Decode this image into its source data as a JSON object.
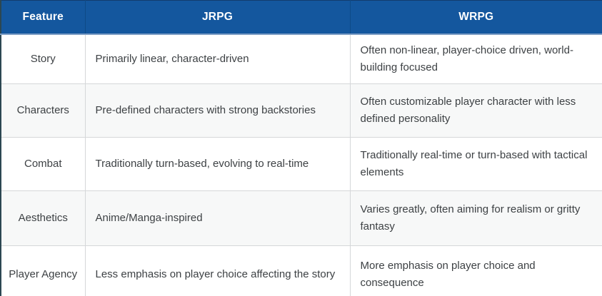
{
  "table": {
    "columns": [
      {
        "label": "Feature"
      },
      {
        "label": "JRPG"
      },
      {
        "label": "WRPG"
      }
    ],
    "rows": [
      {
        "feature": "Story",
        "jrpg": "Primarily linear, character-driven",
        "wrpg": "Often non-linear, player-choice driven, world-building focused"
      },
      {
        "feature": "Characters",
        "jrpg": "Pre-defined characters with strong backstories",
        "wrpg": "Often customizable player character with less defined personality"
      },
      {
        "feature": "Combat",
        "jrpg": "Traditionally turn-based, evolving to real-time",
        "wrpg": "Traditionally real-time or turn-based with tactical elements"
      },
      {
        "feature": "Aesthetics",
        "jrpg": "Anime/Manga-inspired",
        "wrpg": "Varies greatly, often aiming for realism or gritty fantasy"
      },
      {
        "feature": "Player Agency",
        "jrpg": "Less emphasis on player choice affecting the story",
        "wrpg": "More emphasis on player choice and consequence"
      }
    ],
    "colors": {
      "header_bg": "#14579e",
      "header_text": "#ffffff",
      "row_alt_bg": "#f7f8f8",
      "inner_border": "#d5d7d9",
      "outer_border": "#2c4752",
      "body_text": "#3d4144"
    }
  }
}
